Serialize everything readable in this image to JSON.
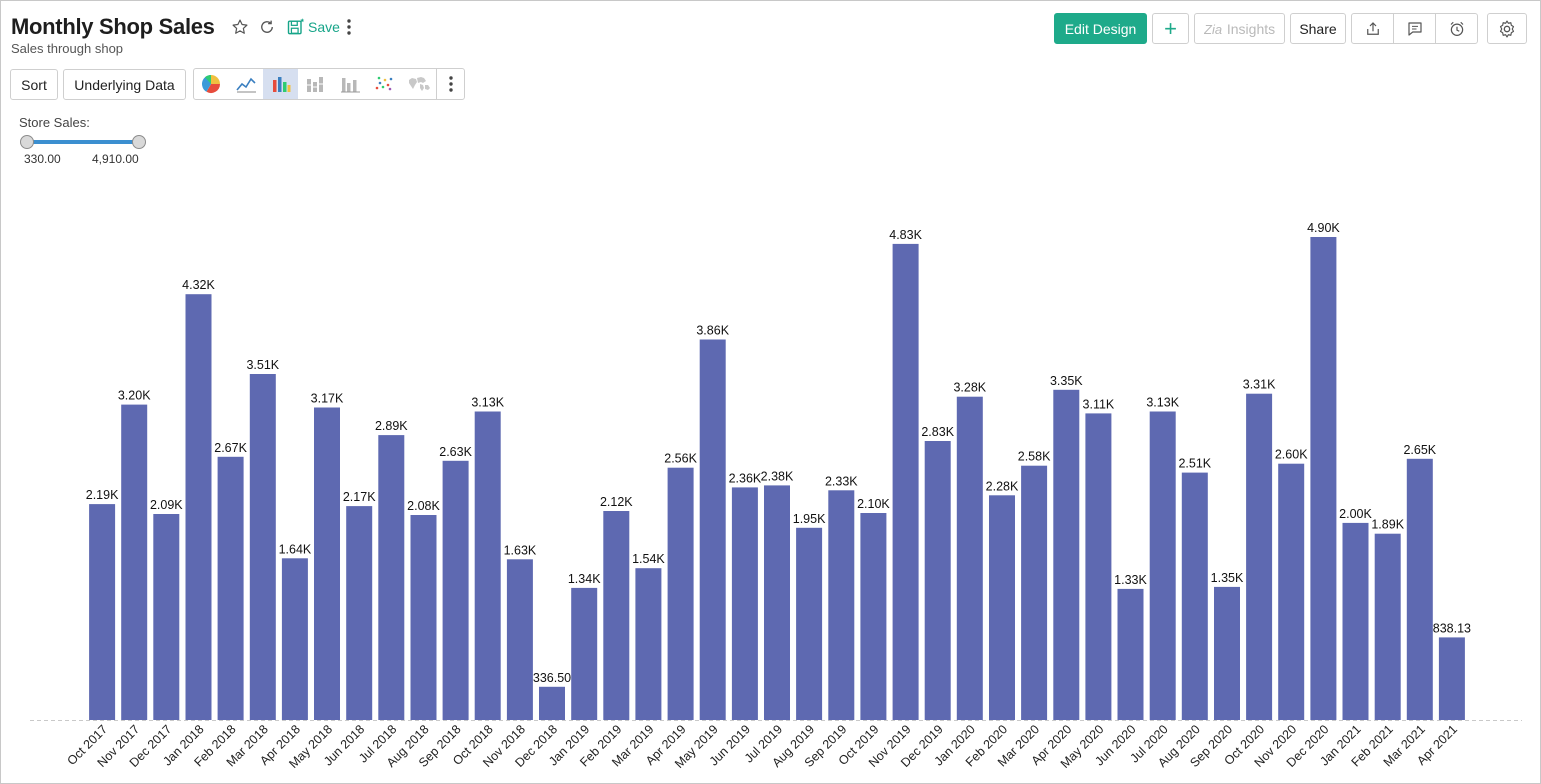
{
  "header": {
    "title": "Monthly Shop Sales",
    "subtitle": "Sales through shop",
    "save_label": "Save"
  },
  "actions": {
    "edit_design": "Edit Design",
    "add": "+",
    "insights": "Insights",
    "share": "Share"
  },
  "toolbar": {
    "sort": "Sort",
    "underlying_data": "Underlying Data",
    "chart_types": [
      "pie-chart-icon",
      "line-chart-icon",
      "bar-chart-icon",
      "stacked-bar-icon",
      "grouped-bar-icon",
      "scatter-chart-icon",
      "map-chart-icon"
    ],
    "active_chart_type": "bar-chart-icon"
  },
  "filter": {
    "label": "Store Sales:",
    "min_label": "330.00",
    "max_label": "4,910.00"
  },
  "colors": {
    "bar": "#5e69b1",
    "accent": "#1eaa8a",
    "slider": "#3b8fd0"
  },
  "chart_data": {
    "type": "bar",
    "grid": false,
    "categories": [
      "Oct 2017",
      "Nov 2017",
      "Dec 2017",
      "Jan 2018",
      "Feb 2018",
      "Mar 2018",
      "Apr 2018",
      "May 2018",
      "Jun 2018",
      "Jul 2018",
      "Aug 2018",
      "Sep 2018",
      "Oct 2018",
      "Nov 2018",
      "Dec 2018",
      "Jan 2019",
      "Feb 2019",
      "Mar 2019",
      "Apr 2019",
      "May 2019",
      "Jun 2019",
      "Jul 2019",
      "Aug 2019",
      "Sep 2019",
      "Oct 2019",
      "Nov 2019",
      "Dec 2019",
      "Jan 2020",
      "Feb 2020",
      "Mar 2020",
      "Apr 2020",
      "May 2020",
      "Jun 2020",
      "Jul 2020",
      "Aug 2020",
      "Sep 2020",
      "Oct 2020",
      "Nov 2020",
      "Dec 2020",
      "Jan 2021",
      "Feb 2021",
      "Mar 2021",
      "Apr 2021"
    ],
    "values": [
      2190,
      3200,
      2090,
      4320,
      2670,
      3510,
      1640,
      3170,
      2170,
      2890,
      2080,
      2630,
      3130,
      1630,
      336.5,
      1340,
      2120,
      1540,
      2560,
      3860,
      2360,
      2380,
      1950,
      2330,
      2100,
      4830,
      2830,
      3280,
      2280,
      2580,
      3350,
      3110,
      1330,
      3130,
      2510,
      1350,
      3310,
      2600,
      4900,
      2000,
      1890,
      2650,
      838.13
    ],
    "labels": [
      "2.19K",
      "3.20K",
      "2.09K",
      "4.32K",
      "2.67K",
      "3.51K",
      "1.64K",
      "3.17K",
      "2.17K",
      "2.89K",
      "2.08K",
      "2.63K",
      "3.13K",
      "1.63K",
      "336.50",
      "1.34K",
      "2.12K",
      "1.54K",
      "2.56K",
      "3.86K",
      "2.36K",
      "2.38K",
      "1.95K",
      "2.33K",
      "2.10K",
      "4.83K",
      "2.83K",
      "3.28K",
      "2.28K",
      "2.58K",
      "3.35K",
      "3.11K",
      "1.33K",
      "3.13K",
      "2.51K",
      "1.35K",
      "3.31K",
      "2.60K",
      "4.90K",
      "2.00K",
      "1.89K",
      "2.65K",
      "838.13"
    ],
    "ylim": [
      0,
      4900
    ]
  }
}
